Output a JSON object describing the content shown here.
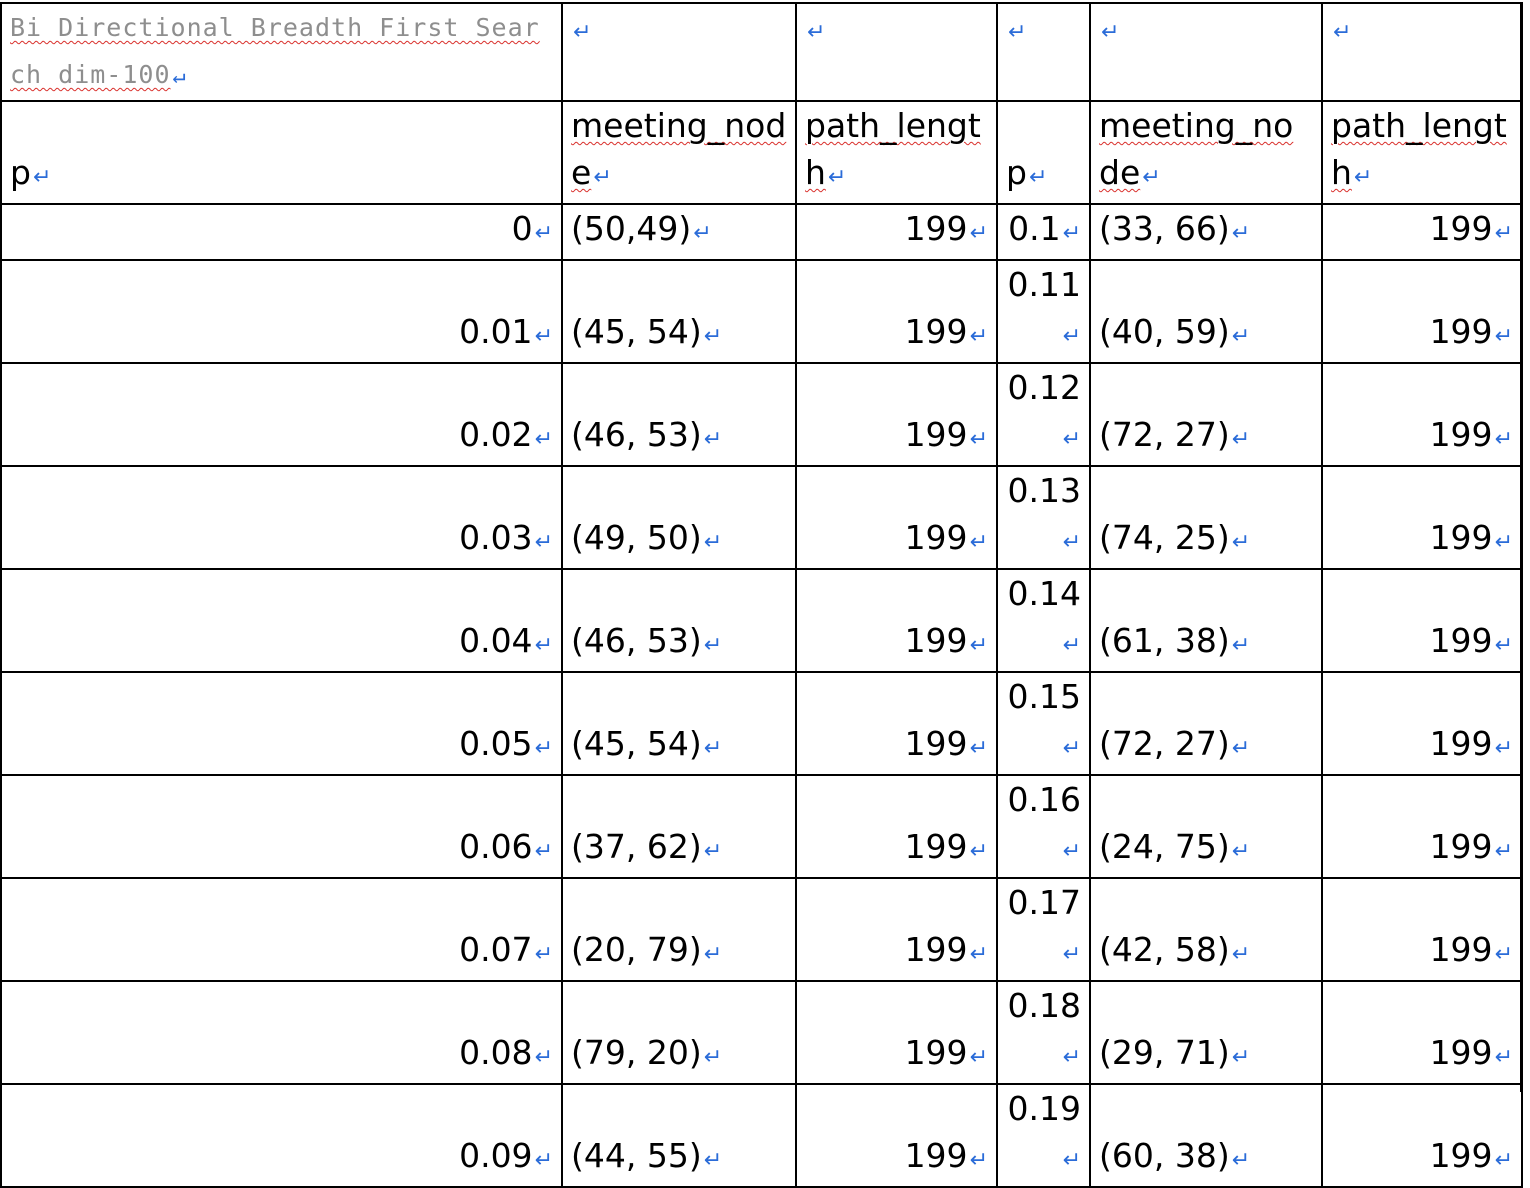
{
  "caption": "Bi Directional Breadth First Search dim-100",
  "paragraph_mark": "↵",
  "headers": {
    "p": "p",
    "meeting_node": "meeting_node",
    "path_length": "path_length"
  },
  "left_rows": [
    {
      "p": "0",
      "meeting_node": "(50,49)",
      "path_length": "199"
    },
    {
      "p": "0.01",
      "meeting_node": "(45, 54)",
      "path_length": "199"
    },
    {
      "p": "0.02",
      "meeting_node": "(46, 53)",
      "path_length": "199"
    },
    {
      "p": "0.03",
      "meeting_node": "(49, 50)",
      "path_length": "199"
    },
    {
      "p": "0.04",
      "meeting_node": "(46, 53)",
      "path_length": "199"
    },
    {
      "p": "0.05",
      "meeting_node": "(45, 54)",
      "path_length": "199"
    },
    {
      "p": "0.06",
      "meeting_node": "(37, 62)",
      "path_length": "199"
    },
    {
      "p": "0.07",
      "meeting_node": "(20, 79)",
      "path_length": "199"
    },
    {
      "p": "0.08",
      "meeting_node": "(79, 20)",
      "path_length": "199"
    },
    {
      "p": "0.09",
      "meeting_node": "(44, 55)",
      "path_length": "199"
    }
  ],
  "right_rows": [
    {
      "p": "0.1",
      "meeting_node": "(33, 66)",
      "path_length": "199"
    },
    {
      "p": "0.11",
      "meeting_node": "(40, 59)",
      "path_length": "199"
    },
    {
      "p": "0.12",
      "meeting_node": "(72, 27)",
      "path_length": "199"
    },
    {
      "p": "0.13",
      "meeting_node": "(74, 25)",
      "path_length": "199"
    },
    {
      "p": "0.14",
      "meeting_node": "(61, 38)",
      "path_length": "199"
    },
    {
      "p": "0.15",
      "meeting_node": "(72, 27)",
      "path_length": "199"
    },
    {
      "p": "0.16",
      "meeting_node": "(24, 75)",
      "path_length": "199"
    },
    {
      "p": "0.17",
      "meeting_node": "(42, 58)",
      "path_length": "199"
    },
    {
      "p": "0.18",
      "meeting_node": "(29, 71)",
      "path_length": "199"
    },
    {
      "p": "0.19",
      "meeting_node": "(60, 38)",
      "path_length": "199"
    }
  ],
  "colors": {
    "paragraph_mark": "#2b6cd8",
    "spell_underline": "#d9302c",
    "caption_text": "#8e8e8e"
  }
}
